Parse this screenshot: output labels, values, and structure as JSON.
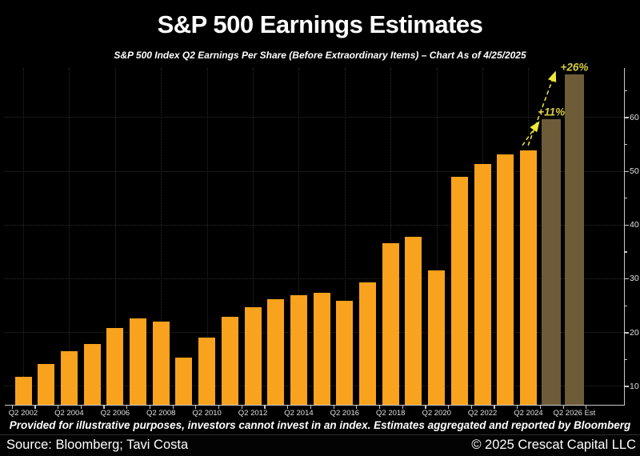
{
  "chart_data": {
    "type": "bar",
    "title": "S&P 500 Earnings Estimates",
    "subtitle": "S&P 500 Index Q2 Earnings Per Share (Before Extraordinary Items) – Chart As of 4/25/2025",
    "categories": [
      2002,
      2003,
      2004,
      2005,
      2006,
      2007,
      2008,
      2009,
      2010,
      2011,
      2012,
      2013,
      2014,
      2015,
      2016,
      2017,
      2018,
      2019,
      2020,
      2021,
      2022,
      2023,
      2024,
      2025,
      2026
    ],
    "values": [
      11.7,
      14.1,
      16.5,
      17.9,
      20.9,
      22.6,
      22.0,
      15.4,
      19.1,
      22.9,
      24.7,
      26.2,
      26.9,
      27.4,
      25.9,
      29.3,
      36.6,
      37.8,
      31.6,
      48.9,
      51.3,
      53.2,
      53.8,
      59.7,
      68.0
    ],
    "estimate_years": [
      2025,
      2026
    ],
    "x_tick_labels": [
      "Q2 2002",
      "Q2 2004",
      "Q2 2006",
      "Q2 2008",
      "Q2 2010",
      "Q2 2012",
      "Q2 2014",
      "Q2 2016",
      "Q2 2018",
      "Q2 2020",
      "Q2 2022",
      "Q2 2024",
      "Q2 2026 Est"
    ],
    "x_tick_every": 2,
    "y_axis": {
      "side": "right",
      "min": 6.4,
      "max": 69.2,
      "tick_labels": [
        10,
        20,
        30,
        40,
        50,
        60
      ],
      "minor_ticks": [
        15,
        25,
        35,
        45,
        55,
        65
      ],
      "grid": true
    },
    "annotations": [
      {
        "label": "+11%",
        "label_year": 2025,
        "label_value": 61.0,
        "arrow": {
          "from_year": 2023.74,
          "from_value": 54.8,
          "to_year": 2024.45,
          "to_value": 59.1
        }
      },
      {
        "label": "+26%",
        "label_year": 2026,
        "label_value": 69.3,
        "arrow": {
          "from_year": 2023.99,
          "from_value": 54.8,
          "to_year": 2025.17,
          "to_value": 68.4
        }
      }
    ],
    "colors": {
      "background": "#000000",
      "bar": "#F9A21D",
      "bar_estimate": "#6E5C38",
      "axis": "#C9C9C9",
      "tick_label": "#E3E3E3",
      "grid": "#2B2B2B",
      "arrow": "#EFE83A",
      "annotation_text": "#D8CC3E",
      "text": "#FFFFFF"
    }
  },
  "footer": {
    "disclaimer": "Provided for illustrative purposes, investors cannot invest in an index. Estimates aggregated and reported by Bloomberg",
    "source": "Source: Bloomberg; Tavi Costa",
    "copyright": "© 2025 Crescat Capital LLC"
  }
}
